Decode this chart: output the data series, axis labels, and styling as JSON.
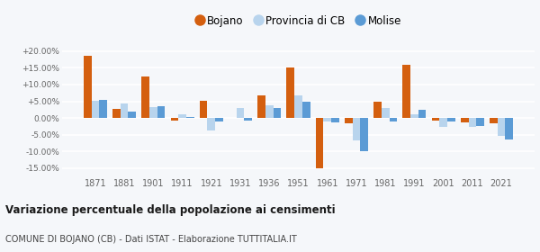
{
  "years": [
    1871,
    1881,
    1901,
    1911,
    1921,
    1931,
    1936,
    1951,
    1961,
    1971,
    1981,
    1991,
    2001,
    2011,
    2021
  ],
  "bojano": [
    18.5,
    2.8,
    12.5,
    -0.8,
    5.2,
    0.05,
    6.8,
    15.2,
    -15.2,
    -1.5,
    4.8,
    16.0,
    -0.8,
    -1.2,
    -1.5
  ],
  "provincia": [
    5.2,
    4.2,
    3.2,
    1.0,
    -3.8,
    3.1,
    3.9,
    6.8,
    -1.0,
    -6.8,
    3.0,
    1.0,
    -2.8,
    -2.8,
    -5.5
  ],
  "molise": [
    5.5,
    2.0,
    3.5,
    0.2,
    -1.0,
    -0.8,
    3.0,
    4.8,
    -1.2,
    -10.0,
    -1.0,
    2.5,
    -1.0,
    -2.5,
    -6.5
  ],
  "bojano_color": "#d45f0f",
  "provincia_color": "#b8d4ed",
  "molise_color": "#5b9bd5",
  "bg_color": "#f5f7fa",
  "plot_bg_color": "#f5f7fa",
  "grid_color": "#ffffff",
  "title": "Variazione percentuale della popolazione ai censimenti",
  "subtitle": "COMUNE DI BOJANO (CB) - Dati ISTAT - Elaborazione TUTTITALIA.IT",
  "ylim": [
    -17.5,
    22.5
  ],
  "yticks": [
    -15,
    -10,
    -5,
    0,
    5,
    10,
    15,
    20
  ],
  "bar_width": 0.27
}
